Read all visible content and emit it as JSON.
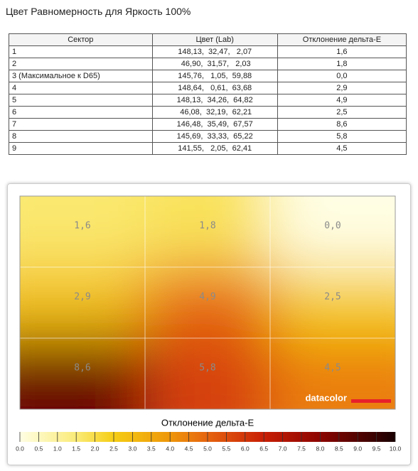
{
  "title": "Цвет Равномерность для Яркость 100%",
  "table": {
    "headers": [
      "Сектор",
      "Цвет (Lab)",
      "Отклонение дельта-E"
    ],
    "rows": [
      [
        "1",
        "148,13,  32,47,   2,07",
        "1,6"
      ],
      [
        "2",
        " 46,90,  31,57,   2,03",
        "1,8"
      ],
      [
        "3 (Максимальное к D65)",
        "145,76,   1,05,  59,88",
        "0,0"
      ],
      [
        "4",
        "148,64,   0,61,  63,68",
        "2,9"
      ],
      [
        "5",
        "148,13,  34,26,  64,82",
        "4,9"
      ],
      [
        "6",
        " 46,08,  32,19,  62,21",
        "2,5"
      ],
      [
        "7",
        "146,48,  35,49,  67,57",
        "8,6"
      ],
      [
        "8",
        "145,69,  33,33,  65,22",
        "5,8"
      ],
      [
        "9",
        "141,55,   2,05,  62,41",
        "4,5"
      ]
    ]
  },
  "heatmap": {
    "cells": [
      [
        {
          "value": 1.6,
          "label": "1,6"
        },
        {
          "value": 1.8,
          "label": "1,8"
        },
        {
          "value": 0.0,
          "label": "0,0"
        }
      ],
      [
        {
          "value": 2.9,
          "label": "2,9"
        },
        {
          "value": 4.9,
          "label": "4,9"
        },
        {
          "value": 2.5,
          "label": "2,5"
        }
      ],
      [
        {
          "value": 8.6,
          "label": "8,6"
        },
        {
          "value": 5.8,
          "label": "5,8"
        },
        {
          "value": 4.5,
          "label": "4,5"
        }
      ]
    ],
    "logo": "datacolor",
    "colorbar": {
      "title": "Отклонение дельта-E",
      "ticks": [
        {
          "value": 0,
          "label": "0.0"
        },
        {
          "value": 0.5,
          "label": "0.5"
        },
        {
          "value": 1,
          "label": "1.0"
        },
        {
          "value": 1.5,
          "label": "1.5"
        },
        {
          "value": 2,
          "label": "2.0"
        },
        {
          "value": 2.5,
          "label": "2.5"
        },
        {
          "value": 3,
          "label": "3.0"
        },
        {
          "value": 3.5,
          "label": "3.5"
        },
        {
          "value": 4,
          "label": "4.0"
        },
        {
          "value": 4.5,
          "label": "4.5"
        },
        {
          "value": 5,
          "label": "5.0"
        },
        {
          "value": 5.5,
          "label": "5.5"
        },
        {
          "value": 6,
          "label": "6.0"
        },
        {
          "value": 6.5,
          "label": "6.5"
        },
        {
          "value": 7,
          "label": "7.0"
        },
        {
          "value": 7.5,
          "label": "7.5"
        },
        {
          "value": 8,
          "label": "8.0"
        },
        {
          "value": 8.5,
          "label": "8.5"
        },
        {
          "value": 9,
          "label": "9.0"
        },
        {
          "value": 9.5,
          "label": "9.5"
        },
        {
          "value": 10,
          "label": "10.0"
        }
      ]
    }
  }
}
